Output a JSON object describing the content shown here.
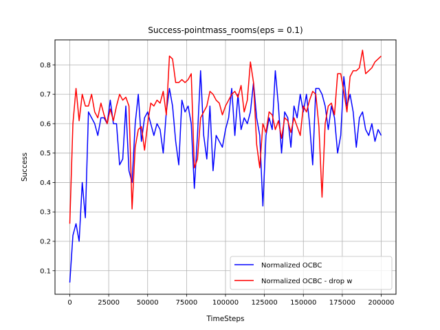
{
  "chart_data": {
    "type": "line",
    "title": "Success-pointmass_rooms(eps = 0.1)",
    "xlabel": "TimeSteps",
    "ylabel": "Success",
    "xlim": [
      -9500,
      209500
    ],
    "ylim": [
      0.02,
      0.885
    ],
    "xticks": [
      0,
      25000,
      50000,
      75000,
      100000,
      125000,
      150000,
      175000,
      200000
    ],
    "yticks": [
      0.1,
      0.2,
      0.3,
      0.4,
      0.5,
      0.6,
      0.7,
      0.8
    ],
    "grid": true,
    "legend_position": "lower-right",
    "series": [
      {
        "name": "Normalized OCBC",
        "color": "#0000ff",
        "x": [
          0,
          2000,
          4000,
          6000,
          8000,
          10000,
          12000,
          14000,
          16000,
          18000,
          20000,
          22000,
          24000,
          26000,
          28000,
          30000,
          32000,
          34000,
          36000,
          38000,
          40000,
          42000,
          44000,
          46000,
          48000,
          50000,
          52000,
          54000,
          56000,
          58000,
          60000,
          62000,
          64000,
          66000,
          68000,
          70000,
          72000,
          74000,
          76000,
          78000,
          80000,
          82000,
          84000,
          86000,
          88000,
          90000,
          92000,
          94000,
          96000,
          98000,
          100000,
          102000,
          104000,
          106000,
          108000,
          110000,
          112000,
          114000,
          116000,
          118000,
          120000,
          122000,
          124000,
          126000,
          128000,
          130000,
          132000,
          134000,
          136000,
          138000,
          140000,
          142000,
          144000,
          146000,
          148000,
          150000,
          152000,
          154000,
          156000,
          158000,
          160000,
          162000,
          164000,
          166000,
          168000,
          170000,
          172000,
          174000,
          176000,
          178000,
          180000,
          182000,
          184000,
          186000,
          188000,
          190000,
          192000,
          194000,
          196000,
          198000,
          200000
        ],
        "values": [
          0.06,
          0.22,
          0.26,
          0.2,
          0.4,
          0.28,
          0.64,
          0.62,
          0.6,
          0.56,
          0.62,
          0.62,
          0.6,
          0.68,
          0.6,
          0.6,
          0.46,
          0.48,
          0.66,
          0.44,
          0.4,
          0.6,
          0.7,
          0.54,
          0.62,
          0.64,
          0.6,
          0.56,
          0.6,
          0.58,
          0.5,
          0.64,
          0.72,
          0.66,
          0.54,
          0.46,
          0.68,
          0.64,
          0.66,
          0.6,
          0.38,
          0.56,
          0.78,
          0.56,
          0.48,
          0.66,
          0.44,
          0.56,
          0.54,
          0.52,
          0.58,
          0.62,
          0.72,
          0.56,
          0.7,
          0.58,
          0.62,
          0.6,
          0.64,
          0.74,
          0.62,
          0.56,
          0.32,
          0.56,
          0.62,
          0.58,
          0.78,
          0.66,
          0.5,
          0.64,
          0.62,
          0.52,
          0.66,
          0.62,
          0.7,
          0.64,
          0.7,
          0.6,
          0.46,
          0.72,
          0.72,
          0.7,
          0.66,
          0.58,
          0.66,
          0.62,
          0.5,
          0.56,
          0.76,
          0.66,
          0.7,
          0.64,
          0.52,
          0.62,
          0.64,
          0.58,
          0.56,
          0.6,
          0.54,
          0.58,
          0.56
        ]
      },
      {
        "name": "Normalized OCBC - drop w",
        "color": "#ff0000",
        "x": [
          0,
          2000,
          4000,
          6000,
          8000,
          10000,
          12000,
          14000,
          16000,
          18000,
          20000,
          22000,
          24000,
          26000,
          28000,
          30000,
          32000,
          34000,
          36000,
          38000,
          40000,
          42000,
          44000,
          46000,
          48000,
          50000,
          52000,
          54000,
          56000,
          58000,
          60000,
          62000,
          64000,
          66000,
          68000,
          70000,
          72000,
          74000,
          76000,
          78000,
          80000,
          82000,
          84000,
          86000,
          88000,
          90000,
          92000,
          94000,
          96000,
          98000,
          100000,
          102000,
          104000,
          106000,
          108000,
          110000,
          112000,
          114000,
          116000,
          118000,
          120000,
          122000,
          124000,
          126000,
          128000,
          130000,
          132000,
          134000,
          136000,
          138000,
          140000,
          142000,
          144000,
          146000,
          148000,
          150000,
          152000,
          154000,
          156000,
          158000,
          160000,
          162000,
          164000,
          166000,
          168000,
          170000,
          172000,
          174000,
          176000,
          178000,
          180000,
          182000,
          184000,
          186000,
          188000,
          190000,
          192000,
          194000,
          196000,
          198000,
          200000
        ],
        "values": [
          0.26,
          0.6,
          0.72,
          0.61,
          0.7,
          0.66,
          0.66,
          0.7,
          0.64,
          0.62,
          0.67,
          0.63,
          0.6,
          0.65,
          0.61,
          0.66,
          0.7,
          0.68,
          0.69,
          0.66,
          0.31,
          0.52,
          0.58,
          0.59,
          0.51,
          0.6,
          0.67,
          0.66,
          0.68,
          0.67,
          0.71,
          0.63,
          0.83,
          0.82,
          0.74,
          0.74,
          0.75,
          0.74,
          0.75,
          0.77,
          0.45,
          0.48,
          0.62,
          0.64,
          0.66,
          0.71,
          0.7,
          0.68,
          0.67,
          0.63,
          0.66,
          0.68,
          0.7,
          0.71,
          0.69,
          0.73,
          0.64,
          0.68,
          0.81,
          0.74,
          0.53,
          0.45,
          0.6,
          0.57,
          0.64,
          0.63,
          0.58,
          0.61,
          0.55,
          0.62,
          0.61,
          0.57,
          0.62,
          0.59,
          0.56,
          0.66,
          0.64,
          0.68,
          0.71,
          0.7,
          0.59,
          0.35,
          0.6,
          0.66,
          0.67,
          0.63,
          0.77,
          0.77,
          0.71,
          0.64,
          0.76,
          0.78,
          0.78,
          0.79,
          0.85,
          0.77,
          0.78,
          0.79,
          0.81,
          0.82,
          0.83
        ]
      }
    ]
  }
}
